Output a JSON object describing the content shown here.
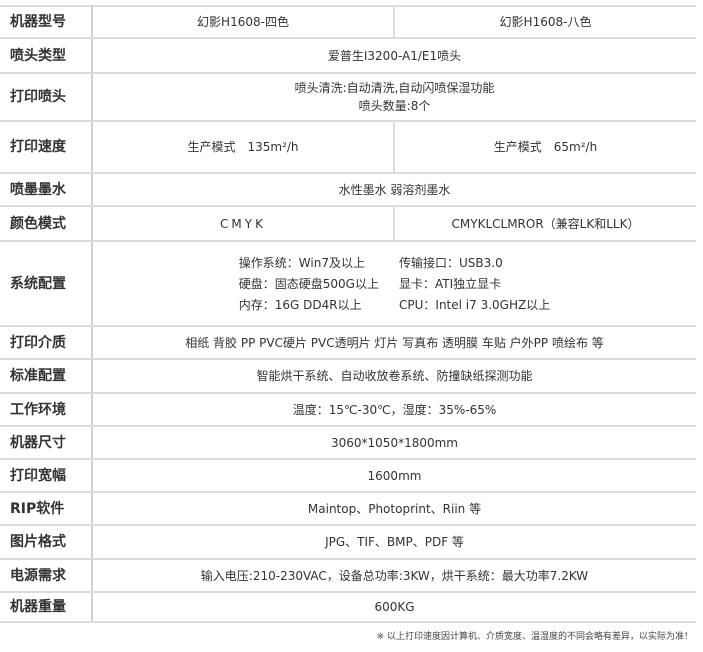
{
  "rows": {
    "model": {
      "label": "机器型号",
      "a": "幻影H1608-四色",
      "b": "幻影H1608-八色"
    },
    "head_type": {
      "label": "喷头类型",
      "value": "爱普生I3200-A1/E1喷头"
    },
    "print_head": {
      "label": "打印喷头",
      "line1": "喷头清洗:自动清洗,自动闪喷保湿功能",
      "line2": "喷头数量:8个"
    },
    "speed": {
      "label": "打印速度",
      "a": "生产模式　135m²/h",
      "b": "生产模式　65m²/h"
    },
    "ink": {
      "label": "喷墨墨水",
      "value": "水性墨水  弱溶剂墨水"
    },
    "color": {
      "label": "颜色模式",
      "a": "CMYK",
      "b": "CMYKLCLMROR（兼容LK和LLK）"
    },
    "system": {
      "label": "系统配置",
      "items": [
        "操作系统：Win7及以上",
        "传输接口：USB3.0",
        "硬盘：固态硬盘500G以上",
        "显卡：ATI独立显卡",
        "内存：16G DD4R以上",
        "CPU：Intel i7 3.0GHZ以上"
      ]
    },
    "media": {
      "label": "打印介质",
      "value": "相纸 背胶 PP PVC硬片 PVC透明片 灯片 写真布 透明膜 车贴 户外PP 喷绘布 等"
    },
    "standard": {
      "label": "标准配置",
      "value": "智能烘干系统、自动收放卷系统、防撞缺纸探测功能"
    },
    "env": {
      "label": "工作环境",
      "value": "温度：15℃-30℃，湿度：35%-65%"
    },
    "size": {
      "label": "机器尺寸",
      "value": "3060*1050*1800mm"
    },
    "width": {
      "label": "打印宽幅",
      "value": "1600mm"
    },
    "rip": {
      "label": "RIP软件",
      "value": "Maintop、Photoprint、Riin 等"
    },
    "format": {
      "label": "图片格式",
      "value": "JPG、TIF、BMP、PDF 等"
    },
    "power": {
      "label": "电源需求",
      "value": "输入电压:210-230VAC，设备总功率:3KW，烘干系统：最大功率7.2KW"
    },
    "weight": {
      "label": "机器重量",
      "value": "600KG"
    }
  },
  "footnote": "※ 以上打印速度因计算机、介质宽度、温湿度的不同会略有差异，以实际为准！"
}
